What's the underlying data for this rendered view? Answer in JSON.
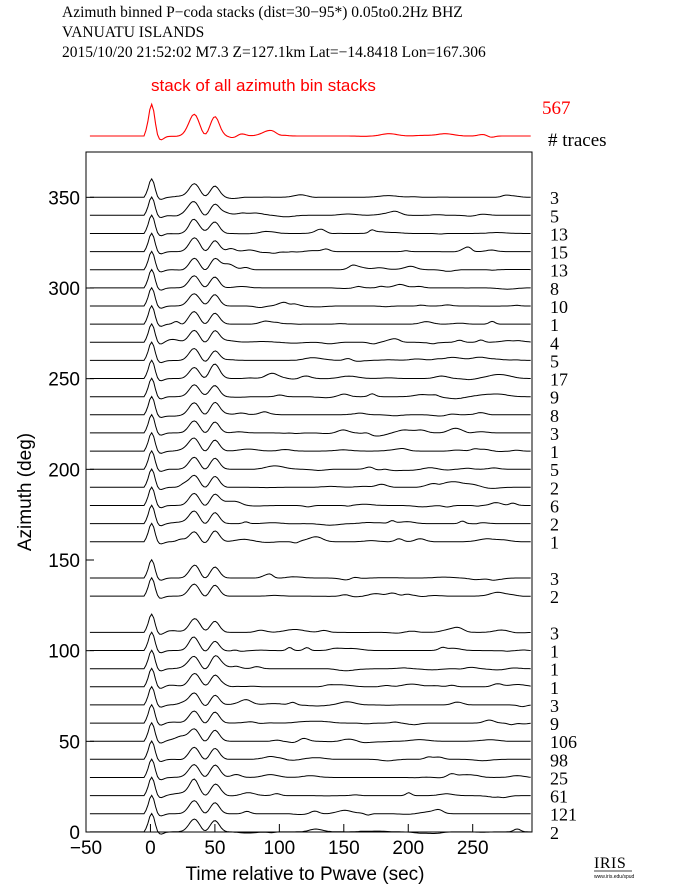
{
  "header": {
    "line1": "Azimuth binned P−coda stacks (dist=30−95*)  0.05to0.2Hz  BHZ",
    "line2": "VANUATU ISLANDS",
    "line3": "2015/10/20   21:52:02   M7.3   Z=127.1km  Lat=−14.8418  Lon=167.306"
  },
  "logo": {
    "text": "IRIS",
    "sub": "www.iris.edu/spud"
  },
  "colors": {
    "stack": "#ff0000",
    "trace": "#000000",
    "axes": "#000000"
  },
  "chart_data": {
    "type": "line",
    "title": "",
    "xlabel": "Time relative to Pwave (sec)",
    "ylabel": "Azimuth (deg)",
    "xlim": [
      -50,
      296
    ],
    "ylim": [
      0,
      375
    ],
    "xticks": [
      -50,
      0,
      50,
      100,
      150,
      200,
      250
    ],
    "xtick_labels": [
      "−50",
      "0",
      "50",
      "100",
      "150",
      "200",
      "250"
    ],
    "yticks": [
      0,
      50,
      100,
      150,
      200,
      250,
      300,
      350
    ],
    "ytick_labels": [
      "0",
      "50",
      "100",
      "150",
      "200",
      "250",
      "300",
      "350"
    ],
    "stack": {
      "label": "stack of all azimuth bin stacks",
      "count": "567",
      "count_header": "# traces"
    },
    "bins": [
      {
        "azimuth": 360,
        "count": "3"
      },
      {
        "azimuth": 350,
        "count": "5"
      },
      {
        "azimuth": 340,
        "count": "13"
      },
      {
        "azimuth": 330,
        "count": "15"
      },
      {
        "azimuth": 320,
        "count": "13"
      },
      {
        "azimuth": 310,
        "count": "8"
      },
      {
        "azimuth": 300,
        "count": "10"
      },
      {
        "azimuth": 290,
        "count": "1"
      },
      {
        "azimuth": 280,
        "count": "4"
      },
      {
        "azimuth": 270,
        "count": "5"
      },
      {
        "azimuth": 260,
        "count": "17"
      },
      {
        "azimuth": 250,
        "count": "9"
      },
      {
        "azimuth": 240,
        "count": "8"
      },
      {
        "azimuth": 230,
        "count": "3"
      },
      {
        "azimuth": 220,
        "count": "1"
      },
      {
        "azimuth": 210,
        "count": "5"
      },
      {
        "azimuth": 200,
        "count": "2"
      },
      {
        "azimuth": 190,
        "count": "6"
      },
      {
        "azimuth": 180,
        "count": "2"
      },
      {
        "azimuth": 170,
        "count": "1"
      },
      {
        "azimuth": 150,
        "count": "3"
      },
      {
        "azimuth": 140,
        "count": "2"
      },
      {
        "azimuth": 120,
        "count": "3"
      },
      {
        "azimuth": 110,
        "count": "1"
      },
      {
        "azimuth": 100,
        "count": "1"
      },
      {
        "azimuth": 90,
        "count": "1"
      },
      {
        "azimuth": 80,
        "count": "3"
      },
      {
        "azimuth": 70,
        "count": "9"
      },
      {
        "azimuth": 60,
        "count": "106"
      },
      {
        "azimuth": 50,
        "count": "98"
      },
      {
        "azimuth": 40,
        "count": "25"
      },
      {
        "azimuth": 30,
        "count": "61"
      },
      {
        "azimuth": 20,
        "count": "121"
      },
      {
        "azimuth": 10,
        "count": "2"
      }
    ]
  }
}
